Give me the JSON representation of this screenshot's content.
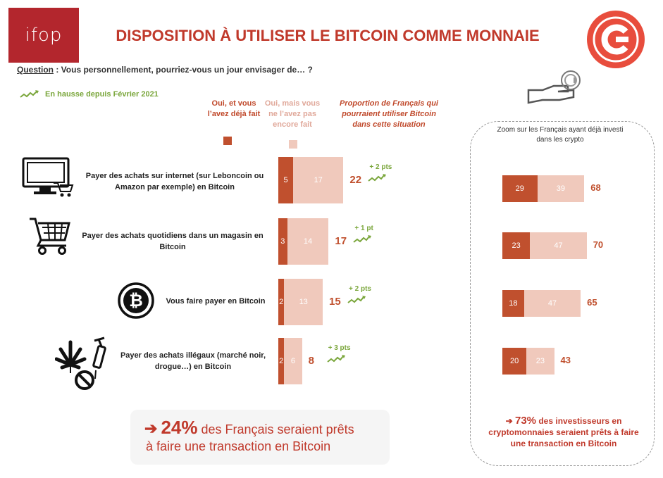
{
  "header": {
    "logo_left": "ifop",
    "title": "DISPOSITION  À UTILISER LE BITCOIN COMME MONNAIE"
  },
  "question": {
    "label": "Question",
    "text": " : Vous personnellement, pourriez-vous un jour envisager de… ?"
  },
  "trend_legend": "En hausse depuis Février 2021",
  "columns": {
    "done": "Oui, et vous l’avez déjà fait",
    "not_yet": "Oui, mais vous ne l’avez pas encore fait",
    "proportion": "Proportion de Français qui pourraient utiliser Bitcoin dans cette situation"
  },
  "colors": {
    "done": "#c0502e",
    "not_yet": "#f0c9bc",
    "trend": "#7aa63b",
    "accent": "#c0392b"
  },
  "chart_data": [
    {
      "type": "bar",
      "stacked": true,
      "orientation": "horizontal",
      "categories": [
        "Payer des achats sur internet (sur Leboncoin ou Amazon par exemple) en Bitcoin",
        "Payer des achats quotidiens dans un magasin en Bitcoin",
        "Vous faire payer en Bitcoin",
        "Payer des achats illégaux (marché noir, drogue…) en Bitcoin"
      ],
      "series": [
        {
          "name": "Oui, et vous l’avez déjà fait",
          "values": [
            5,
            3,
            2,
            2
          ]
        },
        {
          "name": "Oui, mais vous ne l’avez pas encore fait",
          "values": [
            17,
            14,
            13,
            6
          ]
        }
      ],
      "totals": [
        22,
        17,
        15,
        8
      ],
      "trends": [
        "+ 2 pts",
        "+ 1 pt",
        "+ 2 pts",
        "+ 3 pts"
      ],
      "icons": [
        "computer-cart-icon",
        "shopping-cart-icon",
        "bitcoin-icon",
        "cannabis-syringe-forbidden-icon"
      ]
    },
    {
      "type": "bar",
      "stacked": true,
      "orientation": "horizontal",
      "title": "Zoom sur les Français ayant déjà investi dans les crypto",
      "categories": [
        "Payer des achats sur internet (sur Leboncoin ou Amazon par exemple) en Bitcoin",
        "Payer des achats quotidiens dans un magasin en Bitcoin",
        "Vous faire payer en Bitcoin",
        "Payer des achats illégaux (marché noir, drogue…) en Bitcoin"
      ],
      "series": [
        {
          "name": "Oui, et vous l’avez déjà fait",
          "values": [
            29,
            23,
            18,
            20
          ]
        },
        {
          "name": "Oui, mais vous ne l’avez pas encore fait",
          "values": [
            39,
            47,
            47,
            23
          ]
        }
      ],
      "totals": [
        68,
        70,
        65,
        43
      ]
    }
  ],
  "callout": {
    "percent": "24%",
    "text1": " des Français seraient prêts",
    "text2": "à faire une transaction en Bitcoin"
  },
  "zoom_callout": {
    "percent": "73%",
    "text1": " des investisseurs en",
    "text2": "cryptomonnaies seraient prêts à faire",
    "text3": "une transaction en Bitcoin"
  }
}
